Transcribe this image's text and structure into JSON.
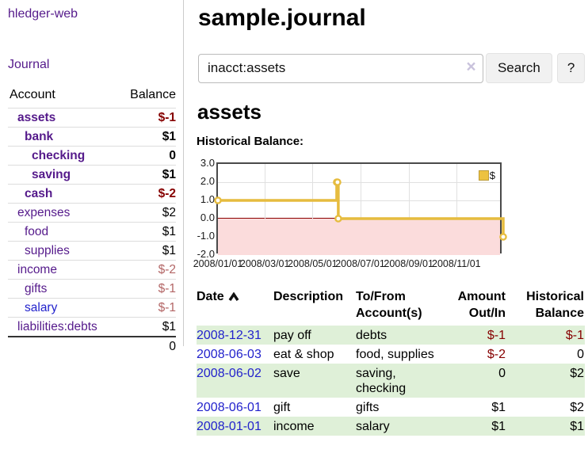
{
  "sidebar": {
    "brand": "hledger-web",
    "journal_link": "Journal",
    "accounts_table": {
      "account_header": "Account",
      "balance_header": "Balance",
      "rows": [
        {
          "name": "assets",
          "balance": "$-1"
        },
        {
          "name": "bank",
          "balance": "$1"
        },
        {
          "name": "checking",
          "balance": "0"
        },
        {
          "name": "saving",
          "balance": "$1"
        },
        {
          "name": "cash",
          "balance": "$-2"
        },
        {
          "name": "expenses",
          "balance": "$2"
        },
        {
          "name": "food",
          "balance": "$1"
        },
        {
          "name": "supplies",
          "balance": "$1"
        },
        {
          "name": "income",
          "balance": "$-2"
        },
        {
          "name": "gifts",
          "balance": "$-1"
        },
        {
          "name": "salary",
          "balance": "$-1"
        },
        {
          "name": "liabilities:debts",
          "balance": "$1"
        }
      ],
      "total": "0"
    }
  },
  "header": {
    "title": "sample.journal"
  },
  "search": {
    "value": "inacct:assets",
    "clear_icon": "×",
    "search_button": "Search",
    "help_button": "?"
  },
  "account_page": {
    "heading": "assets"
  },
  "chart_data": {
    "type": "line",
    "title": "Historical Balance:",
    "step": true,
    "series": [
      {
        "name": "$",
        "color": "#edc240",
        "points": [
          [
            "2008-01-01",
            1
          ],
          [
            "2008-06-01",
            2
          ],
          [
            "2008-06-02",
            2
          ],
          [
            "2008-06-03",
            0
          ],
          [
            "2008-12-31",
            -1
          ]
        ]
      }
    ],
    "x_range": [
      "2008-01-01",
      "2008-12-31"
    ],
    "y_range": [
      -2,
      3
    ],
    "y_ticks": [
      3.0,
      2.0,
      1.0,
      0.0,
      -1.0,
      -2.0
    ],
    "x_tick_dates": [
      "2008-01-01",
      "2008-03-01",
      "2008-05-01",
      "2008-07-01",
      "2008-09-01",
      "2008-11-01"
    ],
    "x_tick_labels": [
      "2008/01/01",
      "2008/03/01",
      "2008/05/01",
      "2008/07/01",
      "2008/09/01",
      "2008/11/01"
    ],
    "legend": {
      "label": "$",
      "position": "top-right"
    },
    "grid": true,
    "negative_region_color": "#fbdcdc",
    "zero_line_color": "#8b0000",
    "line_color": "#e6bc3f"
  },
  "register": {
    "headers": {
      "date": "Date",
      "description": "Description",
      "account": "To/From Account(s)",
      "amount": "Amount Out/In",
      "balance": "Historical Balance"
    },
    "rows": [
      {
        "date": "2008-12-31",
        "description": "pay off",
        "account": "debts",
        "amount": "$-1",
        "balance": "$-1"
      },
      {
        "date": "2008-06-03",
        "description": "eat & shop",
        "account": "food, supplies",
        "amount": "$-2",
        "balance": "0"
      },
      {
        "date": "2008-06-02",
        "description": "save",
        "account": "saving, checking",
        "amount": "0",
        "balance": "$2"
      },
      {
        "date": "2008-06-01",
        "description": "gift",
        "account": "gifts",
        "amount": "$1",
        "balance": "$2"
      },
      {
        "date": "2008-01-01",
        "description": "income",
        "account": "salary",
        "amount": "$1",
        "balance": "$1"
      }
    ]
  }
}
